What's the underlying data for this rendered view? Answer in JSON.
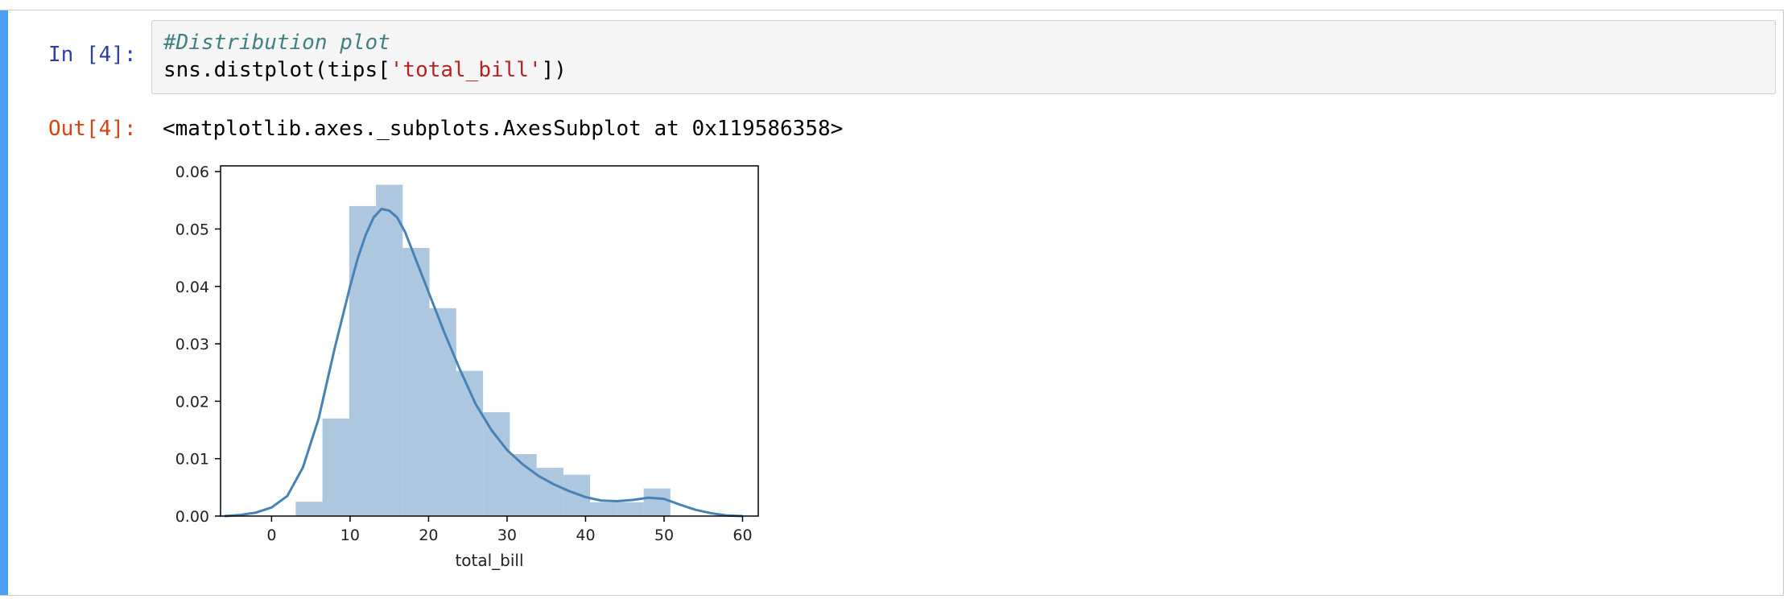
{
  "cell": {
    "in_prompt": "In [4]:",
    "out_prompt": "Out[4]:",
    "code": {
      "comment": "#Distribution plot",
      "line2_pre": "sns.distplot(tips[",
      "line2_str": "'total_bill'",
      "line2_post": "])"
    },
    "output_text": "<matplotlib.axes._subplots.AxesSubplot at 0x119586358>"
  },
  "colors": {
    "bar_fill": "#a9c4dd",
    "kde_line": "#4682b4",
    "cell_bar": "#4a9ff0"
  },
  "chart_data": {
    "type": "bar",
    "title": "",
    "xlabel": "total_bill",
    "ylabel": "",
    "xlim": [
      -6.5,
      62
    ],
    "ylim": [
      0,
      0.061
    ],
    "x_ticks": [
      0,
      10,
      20,
      30,
      40,
      50,
      60
    ],
    "x_tick_labels": [
      "0",
      "10",
      "20",
      "30",
      "40",
      "50",
      "60"
    ],
    "y_ticks": [
      0,
      0.01,
      0.02,
      0.03,
      0.04,
      0.05,
      0.06
    ],
    "y_tick_labels": [
      "0.00",
      "0.01",
      "0.02",
      "0.03",
      "0.04",
      "0.05",
      "0.06"
    ],
    "histogram": {
      "bin_edges": [
        3.07,
        6.48,
        9.89,
        13.3,
        16.71,
        20.12,
        23.53,
        26.94,
        30.35,
        33.76,
        37.17,
        40.58,
        43.99,
        47.4,
        50.81
      ],
      "values": [
        0.0025,
        0.017,
        0.054,
        0.0577,
        0.0467,
        0.0362,
        0.0253,
        0.0181,
        0.0108,
        0.0084,
        0.0072,
        0.0024,
        0.0024,
        0.0048
      ]
    },
    "kde": {
      "x": [
        -6,
        -4,
        -2,
        0,
        2,
        4,
        6,
        8,
        10,
        11,
        12,
        13,
        14,
        15,
        16,
        17,
        18,
        19,
        20,
        22,
        24,
        26,
        28,
        30,
        32,
        34,
        36,
        38,
        40,
        42,
        44,
        46,
        48,
        50,
        52,
        54,
        56,
        58,
        60
      ],
      "y": [
        0.0,
        0.0002,
        0.0006,
        0.0015,
        0.0035,
        0.0085,
        0.017,
        0.029,
        0.04,
        0.045,
        0.049,
        0.052,
        0.0535,
        0.0532,
        0.052,
        0.0495,
        0.046,
        0.0425,
        0.039,
        0.032,
        0.0255,
        0.0195,
        0.015,
        0.0115,
        0.009,
        0.007,
        0.0055,
        0.0043,
        0.0033,
        0.0027,
        0.0026,
        0.0028,
        0.0032,
        0.003,
        0.002,
        0.0011,
        0.0005,
        0.0001,
        0.0
      ]
    }
  }
}
